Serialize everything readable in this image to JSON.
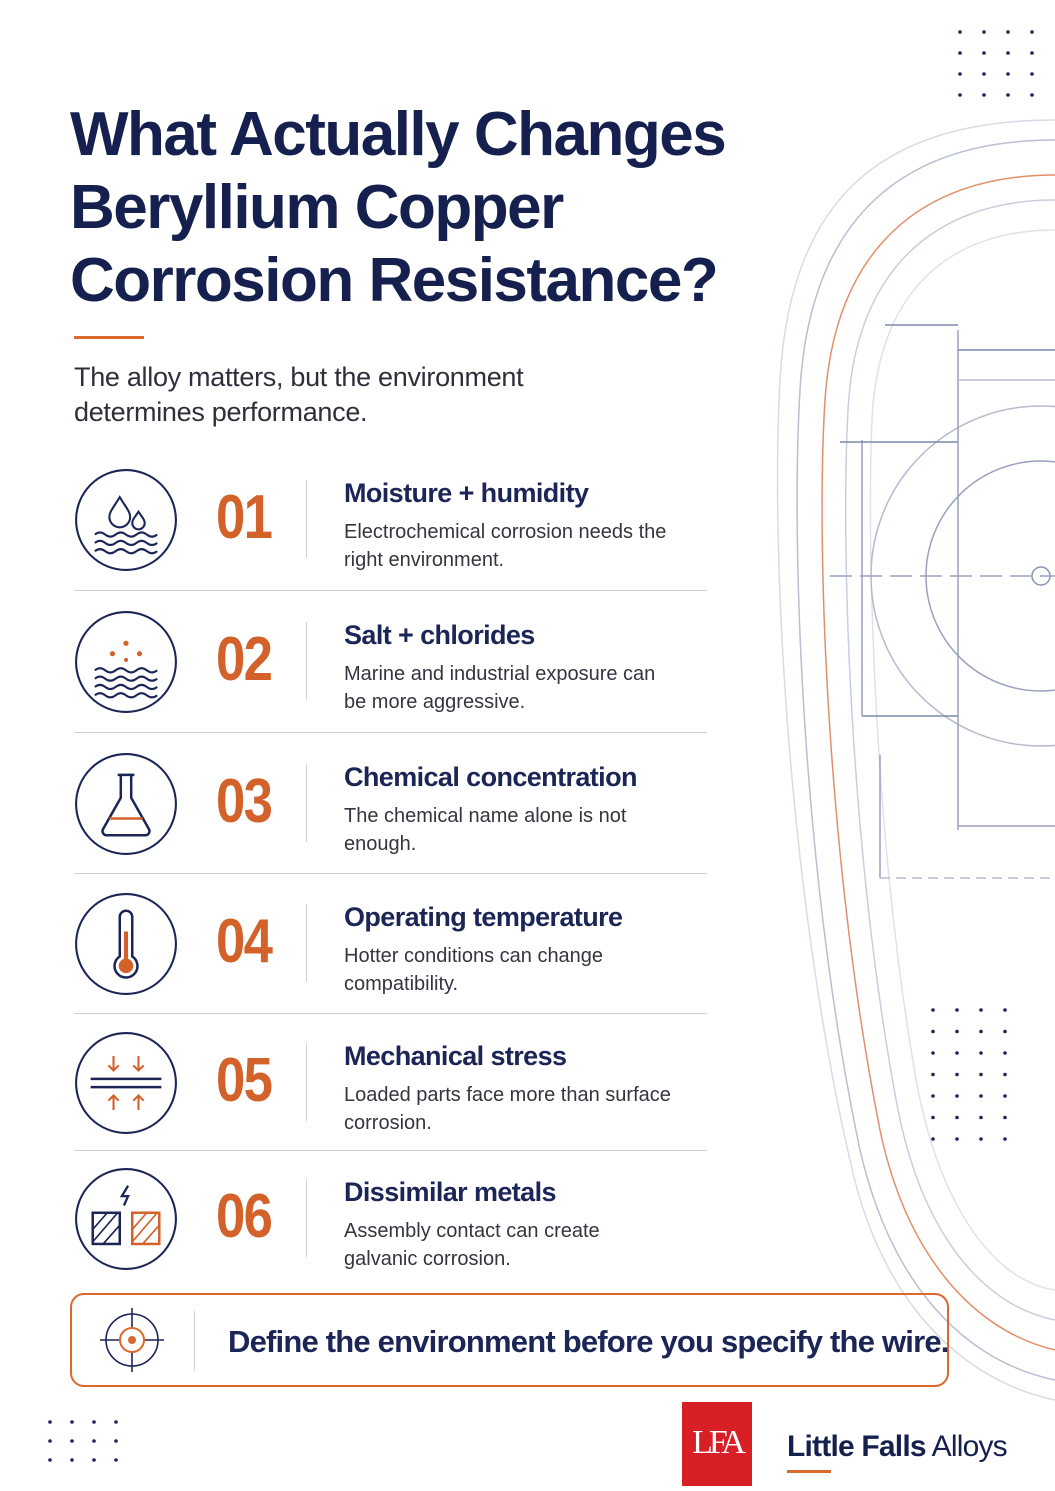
{
  "header": {
    "title_lines": [
      "What Actually Changes",
      "Beryllium Copper",
      "Corrosion Resistance?"
    ],
    "subtitle": "The alloy matters, but the environment determines performance."
  },
  "factors": [
    {
      "number": "01",
      "heading": "Moisture + humidity",
      "description": "Electrochemical corrosion needs the right environment."
    },
    {
      "number": "02",
      "heading": "Salt + chlorides",
      "description": "Marine and industrial exposure can be more aggressive."
    },
    {
      "number": "03",
      "heading": "Chemical concentration",
      "description": "The chemical name alone is not enough."
    },
    {
      "number": "04",
      "heading": "Operating temperature",
      "description": "Hotter conditions can change compatibility."
    },
    {
      "number": "05",
      "heading": "Mechanical stress",
      "description": "Loaded parts face more than surface corrosion."
    },
    {
      "number": "06",
      "heading": "Dissimilar metals",
      "description": "Assembly contact can create galvanic corrosion."
    }
  ],
  "callout": "Define the environment before you specify the wire.",
  "brand": {
    "monogram": "LFA",
    "name_bold": "Little Falls",
    "name_light": "Alloys"
  }
}
